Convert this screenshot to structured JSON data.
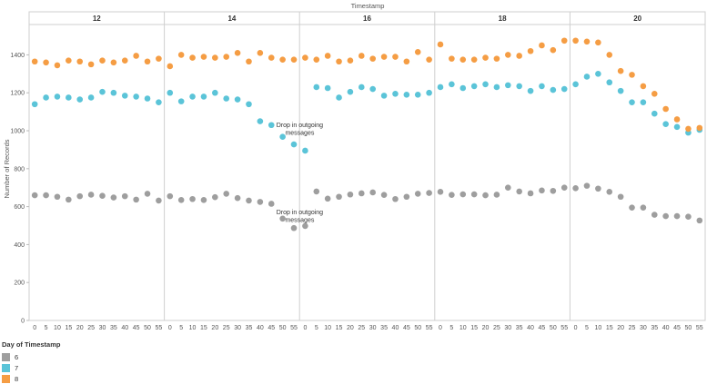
{
  "chart_data": {
    "type": "scatter",
    "title": "Timestamp",
    "ylabel": "Number of Records",
    "ylim": [
      0,
      1560
    ],
    "yticks": [
      0,
      200,
      400,
      600,
      800,
      1000,
      1200,
      1400
    ],
    "hours": [
      "12",
      "14",
      "16",
      "18",
      "20"
    ],
    "minutes": [
      "0",
      "5",
      "10",
      "15",
      "20",
      "25",
      "30",
      "35",
      "40",
      "45",
      "50",
      "55"
    ],
    "grid": false,
    "legend": {
      "title": "Day of Timestamp",
      "position": "bottom-left"
    },
    "series": [
      {
        "name": "6",
        "color": "#9E9E9E",
        "values": [
          [
            660,
            660,
            652,
            637,
            655,
            663,
            657,
            648,
            655,
            637,
            668,
            632
          ],
          [
            655,
            635,
            640,
            635,
            650,
            668,
            645,
            632,
            625,
            615,
            537,
            487
          ],
          [
            498,
            680,
            642,
            652,
            664,
            670,
            675,
            662,
            640,
            652,
            668,
            672
          ],
          [
            678,
            662,
            665,
            665,
            660,
            663,
            700,
            680,
            670,
            685,
            683,
            700
          ],
          [
            697,
            710,
            695,
            678,
            652,
            595,
            595,
            557,
            550,
            550,
            547,
            527
          ]
        ]
      },
      {
        "name": "7",
        "color": "#5BC4D8",
        "values": [
          [
            1140,
            1175,
            1180,
            1175,
            1165,
            1175,
            1205,
            1200,
            1185,
            1180,
            1170,
            1150
          ],
          [
            1200,
            1155,
            1180,
            1180,
            1200,
            1170,
            1165,
            1140,
            1050,
            1030,
            968,
            928
          ],
          [
            895,
            1230,
            1225,
            1175,
            1205,
            1230,
            1220,
            1185,
            1195,
            1190,
            1190,
            1200
          ],
          [
            1230,
            1245,
            1225,
            1235,
            1245,
            1230,
            1240,
            1235,
            1210,
            1235,
            1215,
            1220
          ],
          [
            1245,
            1285,
            1300,
            1255,
            1210,
            1150,
            1150,
            1090,
            1035,
            1020,
            990,
            1005
          ]
        ]
      },
      {
        "name": "8",
        "color": "#F59D44",
        "values": [
          [
            1365,
            1360,
            1345,
            1370,
            1365,
            1350,
            1370,
            1360,
            1370,
            1395,
            1365,
            1380
          ],
          [
            1340,
            1400,
            1385,
            1390,
            1385,
            1390,
            1410,
            1365,
            1410,
            1385,
            1375,
            1375
          ],
          [
            1385,
            1375,
            1395,
            1365,
            1370,
            1395,
            1380,
            1390,
            1390,
            1365,
            1415,
            1375
          ],
          [
            1455,
            1380,
            1375,
            1375,
            1385,
            1380,
            1400,
            1395,
            1420,
            1450,
            1425,
            1475
          ],
          [
            1475,
            1470,
            1465,
            1400,
            1315,
            1295,
            1235,
            1195,
            1115,
            1060,
            1010,
            1015
          ]
        ]
      }
    ],
    "annotations": [
      {
        "lines": [
          "Drop in outgoing",
          "messages"
        ],
        "hour_index": 2,
        "minute": 0,
        "y": 1020
      },
      {
        "lines": [
          "Drop in outgoing",
          "messages"
        ],
        "hour_index": 2,
        "minute": 0,
        "y": 560
      }
    ]
  }
}
